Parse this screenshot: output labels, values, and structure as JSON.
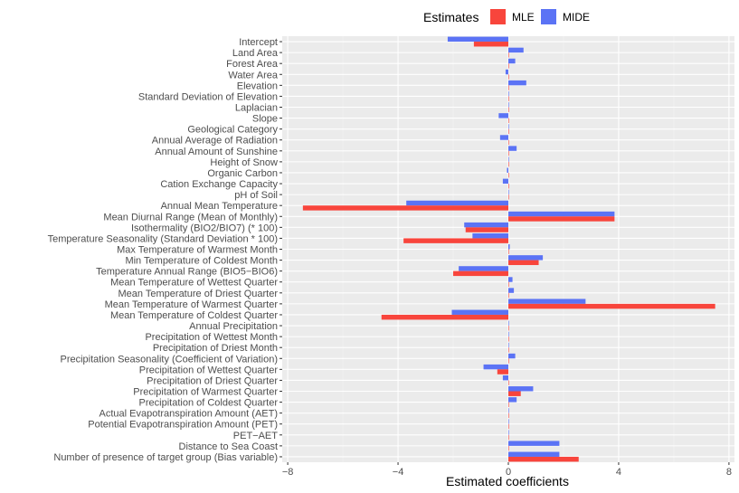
{
  "chart_data": {
    "type": "bar",
    "orientation": "horizontal",
    "xlabel": "Estimated coefficients",
    "ylabel": "",
    "xlim": [
      -8.2,
      8.2
    ],
    "xticks": [
      -8,
      -4,
      0,
      4,
      8
    ],
    "xtick_labels": [
      "−8",
      "−4",
      "0",
      "4",
      "8"
    ],
    "grid": true,
    "legend": {
      "title": "Estimates",
      "position": "top",
      "entries": [
        {
          "name": "MLE",
          "color": "#F8453C"
        },
        {
          "name": "MIDE",
          "color": "#5B73F5"
        }
      ]
    },
    "categories": [
      "Intercept",
      "Land Area",
      "Forest Area",
      "Water Area",
      "Elevation",
      "Standard Deviation of Elevation",
      "Laplacian",
      "Slope",
      "Geological Category",
      "Annual Average of Radiation",
      "Annual Amount of Sunshine",
      "Height of Snow",
      "Organic Carbon",
      "Cation Exchange Capacity",
      "pH of Soil",
      "Annual Mean Temperature",
      "Mean Diurnal Range (Mean of Monthly)",
      "Isothermality (BIO2/BIO7) (* 100)",
      "Temperature Seasonality (Standard Deviation * 100)",
      "Max Temperature of Warmest Month",
      "Min Temperature of Coldest Month",
      "Temperature Annual Range (BIO5−BIO6)",
      "Mean Temperature of Wettest Quarter",
      "Mean Temperature of Driest Quarter",
      "Mean Temperature of Warmest Quarter",
      "Mean Temperature of Coldest Quarter",
      "Annual Precipitation",
      "Precipitation of Wettest Month",
      "Precipitation of Driest Month",
      "Precipitation Seasonality (Coefficient of Variation)",
      "Precipitation of Wettest Quarter",
      "Precipitation of Driest Quarter",
      "Precipitation of Warmest Quarter",
      "Precipitation of Coldest Quarter",
      "Actual Evapotranspiration Amount (AET)",
      "Potential Evapotranspiration Amount (PET)",
      "PET−AET",
      "Distance to Sea Coast",
      "Number of presence of target group (Bias variable)"
    ],
    "series": [
      {
        "name": "MLE",
        "color": "#F8453C",
        "values": [
          -1.25,
          0.0,
          0.0,
          0.0,
          0.0,
          0.0,
          0.0,
          0.0,
          0.0,
          0.0,
          0.0,
          0.0,
          0.0,
          0.0,
          0.0,
          -7.45,
          3.85,
          -1.55,
          -3.8,
          0.0,
          1.1,
          -2.0,
          0.0,
          0.0,
          7.5,
          -4.6,
          0.0,
          0.0,
          0.0,
          0.0,
          -0.4,
          0.0,
          0.45,
          0.0,
          0.0,
          0.0,
          0.0,
          0.0,
          2.55
        ]
      },
      {
        "name": "MIDE",
        "color": "#5B73F5",
        "values": [
          -2.2,
          0.55,
          0.25,
          -0.1,
          0.65,
          0.02,
          0.02,
          -0.35,
          0.0,
          -0.3,
          0.3,
          0.02,
          -0.05,
          -0.2,
          0.0,
          -3.7,
          3.85,
          -1.6,
          -1.3,
          0.05,
          1.25,
          -1.8,
          0.15,
          0.2,
          2.8,
          -2.05,
          0.0,
          0.0,
          0.0,
          0.25,
          -0.9,
          -0.2,
          0.9,
          0.3,
          0.02,
          0.02,
          0.02,
          1.85,
          1.85
        ]
      }
    ]
  }
}
